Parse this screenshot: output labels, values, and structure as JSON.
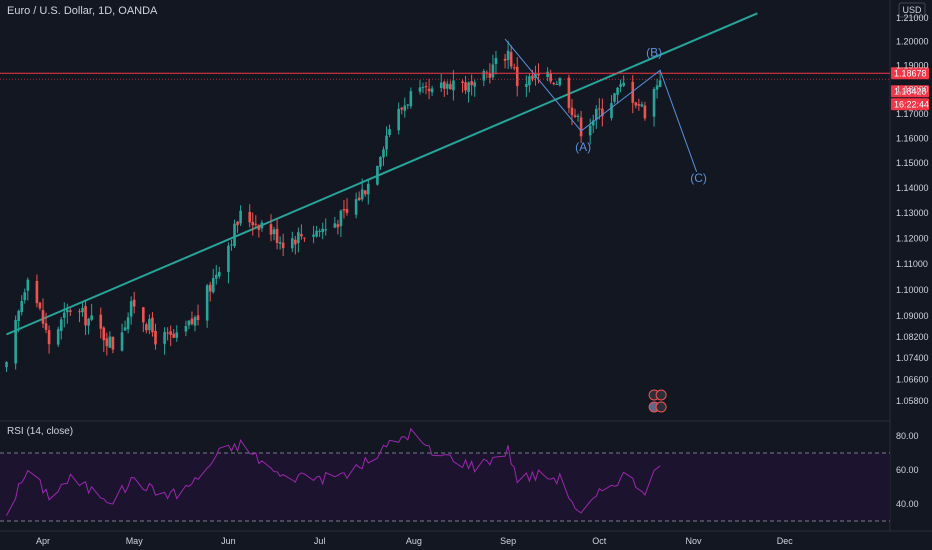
{
  "header": {
    "symbol_title": "Euro / U.S. Dollar, 1D, OANDA",
    "currency": "USD"
  },
  "rsi": {
    "title": "RSI (14, close)",
    "ticks": [
      "80.00",
      "60.00",
      "40.00"
    ],
    "upper": 70,
    "lower": 30,
    "range": [
      22,
      88
    ]
  },
  "price_tags": {
    "resistance": "1.18678",
    "last": "1.18428",
    "countdown": "16:22:44"
  },
  "wave_labels": {
    "a": "(A)",
    "b": "(B)",
    "c": "(C)"
  },
  "colors": {
    "bg": "#131722",
    "up": "#26a69a",
    "down": "#ef5350",
    "trendline": "#26a69a",
    "resistance": "#f23645",
    "wave": "#5b8fd9",
    "rsi": "#9c27b0",
    "rsi_band": "#1f1430",
    "axis_text": "#d1d4dc"
  },
  "chart_data": {
    "type": "candlestick",
    "title": "Euro / U.S. Dollar, 1D, OANDA",
    "y_ticks": [
      "1.21000",
      "1.20000",
      "1.19000",
      "1.18000",
      "1.17000",
      "1.16000",
      "1.15000",
      "1.14000",
      "1.13000",
      "1.12000",
      "1.11000",
      "1.10000",
      "1.09000",
      "1.08200",
      "1.07400",
      "1.06600",
      "1.05800"
    ],
    "x_ticks": [
      "Apr",
      "May",
      "Jun",
      "Jul",
      "Aug",
      "Sep",
      "Oct",
      "Nov",
      "Dec"
    ],
    "scale": "log",
    "resistance_level": 1.18678,
    "last_price": 1.18428,
    "trendline": {
      "start": [
        "2020-03-20",
        1.083
      ],
      "end": [
        "2020-11-22",
        1.212
      ]
    },
    "wave_path": [
      [
        "2020-08-31",
        1.2011
      ],
      [
        "2020-09-25",
        1.163
      ],
      [
        "2020-10-21",
        1.188
      ],
      [
        "2020-11-02",
        1.1465
      ]
    ],
    "anchors": [
      [
        "2020-03-20",
        1.07
      ],
      [
        "2020-03-27",
        1.107
      ],
      [
        "2020-04-03",
        1.08
      ],
      [
        "2020-04-10",
        1.093
      ],
      [
        "2020-04-17",
        1.088
      ],
      [
        "2020-04-24",
        1.079
      ],
      [
        "2020-05-01",
        1.095
      ],
      [
        "2020-05-08",
        1.082
      ],
      [
        "2020-05-15",
        1.081
      ],
      [
        "2020-05-22",
        1.09
      ],
      [
        "2020-05-29",
        1.11
      ],
      [
        "2020-06-05",
        1.129
      ],
      [
        "2020-06-12",
        1.126
      ],
      [
        "2020-06-19",
        1.119
      ],
      [
        "2020-06-26",
        1.122
      ],
      [
        "2020-07-03",
        1.124
      ],
      [
        "2020-07-10",
        1.13
      ],
      [
        "2020-07-17",
        1.142
      ],
      [
        "2020-07-24",
        1.165
      ],
      [
        "2020-07-31",
        1.178
      ],
      [
        "2020-08-07",
        1.178
      ],
      [
        "2020-08-14",
        1.184
      ],
      [
        "2020-08-21",
        1.18
      ],
      [
        "2020-08-28",
        1.191
      ],
      [
        "2020-09-01",
        1.196
      ],
      [
        "2020-09-04",
        1.183
      ],
      [
        "2020-09-11",
        1.185
      ],
      [
        "2020-09-18",
        1.184
      ],
      [
        "2020-09-25",
        1.164
      ],
      [
        "2020-10-02",
        1.172
      ],
      [
        "2020-10-09",
        1.182
      ],
      [
        "2020-10-16",
        1.171
      ],
      [
        "2020-10-21",
        1.186
      ]
    ],
    "rsi_anchors": [
      [
        "2020-03-20",
        35
      ],
      [
        "2020-03-27",
        60
      ],
      [
        "2020-04-03",
        45
      ],
      [
        "2020-04-10",
        55
      ],
      [
        "2020-04-17",
        48
      ],
      [
        "2020-04-24",
        42
      ],
      [
        "2020-05-01",
        55
      ],
      [
        "2020-05-08",
        47
      ],
      [
        "2020-05-15",
        46
      ],
      [
        "2020-05-22",
        55
      ],
      [
        "2020-05-29",
        70
      ],
      [
        "2020-06-05",
        75
      ],
      [
        "2020-06-12",
        65
      ],
      [
        "2020-06-19",
        55
      ],
      [
        "2020-06-26",
        57
      ],
      [
        "2020-07-03",
        55
      ],
      [
        "2020-07-10",
        58
      ],
      [
        "2020-07-17",
        65
      ],
      [
        "2020-07-24",
        75
      ],
      [
        "2020-07-31",
        82
      ],
      [
        "2020-08-07",
        70
      ],
      [
        "2020-08-14",
        67
      ],
      [
        "2020-08-21",
        62
      ],
      [
        "2020-08-28",
        68
      ],
      [
        "2020-09-01",
        72
      ],
      [
        "2020-09-04",
        55
      ],
      [
        "2020-09-11",
        57
      ],
      [
        "2020-09-18",
        55
      ],
      [
        "2020-09-25",
        33
      ],
      [
        "2020-10-02",
        48
      ],
      [
        "2020-10-09",
        57
      ],
      [
        "2020-10-16",
        48
      ],
      [
        "2020-10-21",
        62
      ]
    ]
  }
}
